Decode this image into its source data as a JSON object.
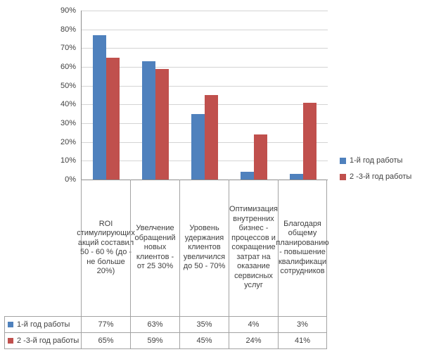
{
  "chart_data": {
    "type": "bar",
    "title": "",
    "xlabel": "",
    "ylabel": "",
    "categories": [
      "ROI стимулирующих акций составил 50 - 60 % (до - не больше 20%)",
      "Увелчение обращений новых клиентов - от 25 30%",
      "Уровень удержания клиентов увеличился до 50 - 70%",
      "Оптимизация внутренних бизнес - процессов и сокращение затрат на оказание сервисных услуг",
      "Благодаря общему планированию - повышение квалификаци сотрудников"
    ],
    "series": [
      {
        "name": "1-й год работы",
        "color": "#4F81BD",
        "values": [
          77,
          63,
          35,
          4,
          3
        ],
        "value_labels": [
          "77%",
          "63%",
          "35%",
          "4%",
          "3%"
        ]
      },
      {
        "name": "2 -3-й год работы",
        "color": "#C0504D",
        "values": [
          65,
          59,
          45,
          24,
          41
        ],
        "value_labels": [
          "65%",
          "59%",
          "45%",
          "24%",
          "41%"
        ]
      }
    ],
    "ylim": [
      0,
      90
    ],
    "ytick_step": 10,
    "ytick_labels": [
      "0%",
      "10%",
      "20%",
      "30%",
      "40%",
      "50%",
      "60%",
      "70%",
      "80%",
      "90%"
    ],
    "grid": true,
    "legend_position": "right",
    "data_table_shown": true
  },
  "colors": {
    "axis_line": "#8e8e8e",
    "gridline": "#d4d4d4",
    "table_border": "#a3a3a3",
    "text": "#3f3f3f",
    "background": "#ffffff"
  }
}
